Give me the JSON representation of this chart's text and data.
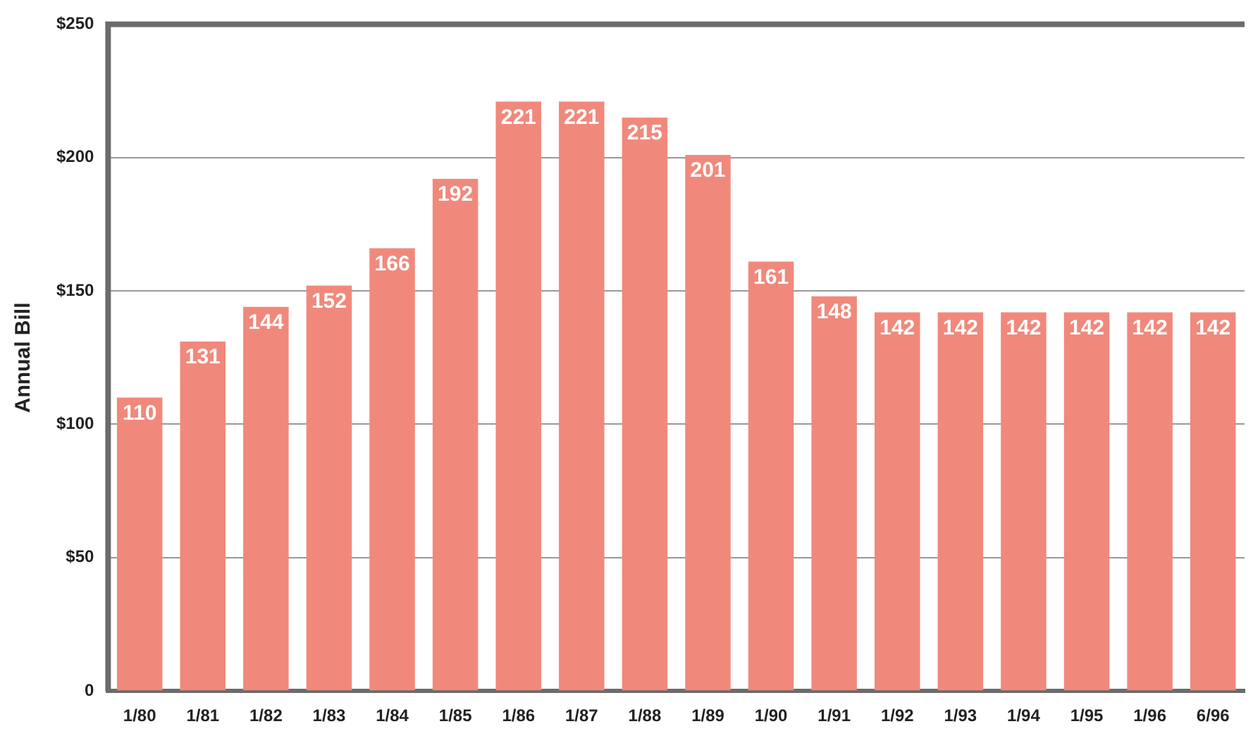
{
  "chart_data": {
    "type": "bar",
    "ylabel": "Annual Bill",
    "categories": [
      "1/80",
      "1/81",
      "1/82",
      "1/83",
      "1/84",
      "1/85",
      "1/86",
      "1/87",
      "1/88",
      "1/89",
      "1/90",
      "1/91",
      "1/92",
      "1/93",
      "1/94",
      "1/95",
      "1/96",
      "6/96"
    ],
    "values": [
      110,
      131,
      144,
      152,
      166,
      192,
      221,
      221,
      215,
      201,
      161,
      148,
      142,
      142,
      142,
      142,
      142,
      142
    ],
    "color": "#f0897c",
    "ylim": [
      0,
      250
    ],
    "yticks": [
      {
        "value": 0,
        "label": "0"
      },
      {
        "value": 50,
        "label": "$50"
      },
      {
        "value": 100,
        "label": "$100"
      },
      {
        "value": 150,
        "label": "$150"
      },
      {
        "value": 200,
        "label": "$200"
      },
      {
        "value": 250,
        "label": "$250"
      }
    ],
    "grid": "y",
    "data_labels": true,
    "legend": false
  }
}
